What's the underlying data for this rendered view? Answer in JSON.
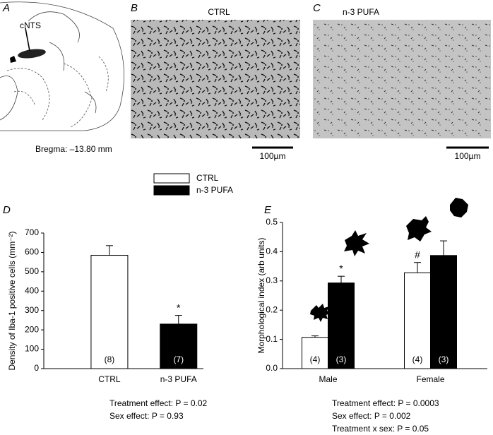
{
  "panels": {
    "A": {
      "letter": "A",
      "structure": "cNTS",
      "bregma": "Bregma: –13.80 mm"
    },
    "B": {
      "letter": "B",
      "title": "CTRL",
      "scale_bar": "100µm"
    },
    "C": {
      "letter": "C",
      "title": "n-3 PUFA",
      "scale_bar": "100µm"
    }
  },
  "chart_data": [
    {
      "type": "bar",
      "letter": "D",
      "y_label": "Density of Iba-1 positive cells (mm⁻²)",
      "categories": [
        "CTRL",
        "n-3 PUFA"
      ],
      "values": [
        585,
        230
      ],
      "errors": [
        50,
        45
      ],
      "colors": [
        "#ffffff",
        "#000000"
      ],
      "n_labels": [
        "(8)",
        "(7)"
      ],
      "significance": [
        null,
        "*"
      ],
      "ylim": [
        0,
        700
      ],
      "yticks": [
        0,
        100,
        200,
        300,
        400,
        500,
        600,
        700
      ],
      "stats": [
        "Treatment effect: P = 0.02",
        "Sex effect: P = 0.93"
      ]
    },
    {
      "type": "grouped_bar",
      "letter": "E",
      "y_label": "Morphological index (arb units)",
      "categories": [
        "Male",
        "Female"
      ],
      "series": [
        {
          "name": "CTRL",
          "color": "#ffffff",
          "values": [
            0.107,
            0.328
          ],
          "errors": [
            0.005,
            0.035
          ],
          "n_labels": [
            "(4)",
            "(4)"
          ],
          "significance": [
            null,
            "#"
          ]
        },
        {
          "name": "n-3 PUFA",
          "color": "#000000",
          "values": [
            0.293,
            0.387
          ],
          "errors": [
            0.023,
            0.05
          ],
          "n_labels": [
            "(3)",
            "(3)"
          ],
          "significance": [
            "*",
            null
          ]
        }
      ],
      "ylim": [
        0,
        0.5
      ],
      "yticks": [
        {
          "value": 0,
          "label": "0.0"
        },
        0.1,
        0.2,
        0.3,
        0.4,
        0.5
      ],
      "stats": [
        "Treatment effect: P = 0.0003",
        "Sex effect: P = 0.002",
        "Treatment x sex: P = 0.05"
      ]
    }
  ]
}
